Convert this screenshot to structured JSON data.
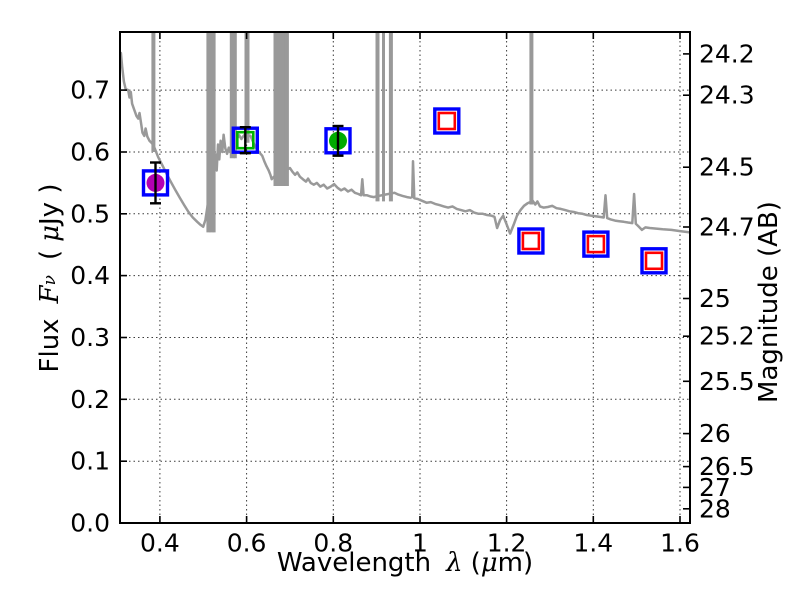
{
  "labels": {
    "xlabel_word": "Wavelength",
    "xlabel_symbol": "λ",
    "xlabel_units_open": "(",
    "xlabel_mu": "μ",
    "xlabel_units_rest": "m)",
    "ylabel_word": "Flux",
    "ylabel_F": "F",
    "ylabel_nu": "ν",
    "ylabel_units_open": "(",
    "ylabel_mu": "μ",
    "ylabel_units_rest": "Jy )",
    "ylabel_right": "Magnitude (AB)"
  },
  "chart_data": {
    "type": "line+scatter",
    "title": "",
    "xlabel": "Wavelength λ (μm)",
    "ylabel": "Flux Fν ( μJy )",
    "ylabel_right": "Magnitude (AB)",
    "xlim": [
      0.308,
      1.623
    ],
    "ylim": [
      0.0,
      0.794
    ],
    "grid": true,
    "x_ticks": {
      "values": [
        0.4,
        0.6,
        0.8,
        1.0,
        1.2,
        1.4,
        1.6
      ],
      "labels": [
        "0.4",
        "0.6",
        "0.8",
        "1",
        "1.2",
        "1.4",
        "1.6"
      ]
    },
    "y_ticks_left": {
      "values": [
        0.0,
        0.1,
        0.2,
        0.3,
        0.4,
        0.5,
        0.6,
        0.7
      ],
      "labels": [
        "0.0",
        "0.1",
        "0.2",
        "0.3",
        "0.4",
        "0.5",
        "0.6",
        "0.7"
      ]
    },
    "y_ticks_right": {
      "values": [
        24.2,
        24.3,
        24.5,
        24.7,
        25,
        25.2,
        25.5,
        26,
        26.5,
        27,
        28
      ],
      "labels": [
        "24.2",
        "24.3",
        "24.5",
        "24.7",
        "25",
        "25.2",
        "25.5",
        "26",
        "26.5",
        "27",
        "28"
      ],
      "relation": "AB magnitude axis: F(μJy) = 10^((23.9 − m_AB)/2.5)"
    },
    "series": [
      {
        "name": "model_spectrum",
        "type": "line",
        "color": "#999999",
        "points": [
          [
            0.31,
            0.76
          ],
          [
            0.313,
            0.737
          ],
          [
            0.317,
            0.714
          ],
          [
            0.321,
            0.702
          ],
          [
            0.327,
            0.7
          ],
          [
            0.33,
            0.688
          ],
          [
            0.333,
            0.697
          ],
          [
            0.336,
            0.678
          ],
          [
            0.341,
            0.668
          ],
          [
            0.346,
            0.658
          ],
          [
            0.35,
            0.654
          ],
          [
            0.353,
            0.663
          ],
          [
            0.357,
            0.645
          ],
          [
            0.36,
            0.631
          ],
          [
            0.364,
            0.626
          ],
          [
            0.367,
            0.638
          ],
          [
            0.371,
            0.625
          ],
          [
            0.376,
            0.618
          ],
          [
            0.382,
            0.614
          ],
          [
            0.388,
            0.606
          ],
          [
            0.396,
            0.592
          ],
          [
            0.406,
            0.578
          ],
          [
            0.416,
            0.564
          ],
          [
            0.426,
            0.551
          ],
          [
            0.436,
            0.538
          ],
          [
            0.446,
            0.526
          ],
          [
            0.456,
            0.514
          ],
          [
            0.466,
            0.503
          ],
          [
            0.476,
            0.494
          ],
          [
            0.486,
            0.487
          ],
          [
            0.494,
            0.482
          ],
          [
            0.5,
            0.479
          ],
          [
            0.505,
            0.49
          ],
          [
            0.528,
            0.596
          ],
          [
            0.531,
            0.57
          ],
          [
            0.534,
            0.612
          ],
          [
            0.537,
            0.588
          ],
          [
            0.54,
            0.618
          ],
          [
            0.544,
            0.6
          ],
          [
            0.547,
            0.628
          ],
          [
            0.551,
            0.606
          ],
          [
            0.555,
            0.597
          ],
          [
            0.559,
            0.607
          ],
          [
            0.562,
            0.6
          ],
          [
            0.578,
            0.622
          ],
          [
            0.583,
            0.627
          ],
          [
            0.588,
            0.621
          ],
          [
            0.593,
            0.626
          ],
          [
            0.596,
            0.628
          ],
          [
            0.609,
            0.626
          ],
          [
            0.614,
            0.618
          ],
          [
            0.619,
            0.61
          ],
          [
            0.625,
            0.603
          ],
          [
            0.631,
            0.598
          ],
          [
            0.636,
            0.594
          ],
          [
            0.641,
            0.585
          ],
          [
            0.646,
            0.577
          ],
          [
            0.651,
            0.57
          ],
          [
            0.655,
            0.563
          ],
          [
            0.658,
            0.556
          ],
          [
            0.663,
            0.56
          ],
          [
            0.7,
            0.574
          ],
          [
            0.706,
            0.568
          ],
          [
            0.712,
            0.563
          ],
          [
            0.717,
            0.567
          ],
          [
            0.723,
            0.56
          ],
          [
            0.73,
            0.556
          ],
          [
            0.737,
            0.552
          ],
          [
            0.742,
            0.557
          ],
          [
            0.748,
            0.55
          ],
          [
            0.755,
            0.547
          ],
          [
            0.762,
            0.55
          ],
          [
            0.77,
            0.544
          ],
          [
            0.778,
            0.547
          ],
          [
            0.786,
            0.541
          ],
          [
            0.794,
            0.544
          ],
          [
            0.802,
            0.548
          ],
          [
            0.81,
            0.542
          ],
          [
            0.818,
            0.538
          ],
          [
            0.826,
            0.541
          ],
          [
            0.834,
            0.536
          ],
          [
            0.842,
            0.539
          ],
          [
            0.85,
            0.534
          ],
          [
            0.858,
            0.532
          ],
          [
            0.864,
            0.53
          ],
          [
            0.867,
            0.556
          ],
          [
            0.87,
            0.53
          ],
          [
            0.878,
            0.53
          ],
          [
            0.886,
            0.528
          ],
          [
            0.894,
            0.527
          ],
          [
            0.898,
            0.528
          ],
          [
            0.941,
            0.534
          ],
          [
            0.95,
            0.531
          ],
          [
            0.96,
            0.529
          ],
          [
            0.97,
            0.527
          ],
          [
            0.978,
            0.526
          ],
          [
            0.982,
            0.527
          ],
          [
            0.984,
            0.585
          ],
          [
            0.987,
            0.525
          ],
          [
            0.995,
            0.524
          ],
          [
            1.005,
            0.521
          ],
          [
            1.015,
            0.518
          ],
          [
            1.025,
            0.519
          ],
          [
            1.035,
            0.516
          ],
          [
            1.045,
            0.514
          ],
          [
            1.055,
            0.512
          ],
          [
            1.065,
            0.51
          ],
          [
            1.075,
            0.512
          ],
          [
            1.085,
            0.508
          ],
          [
            1.095,
            0.506
          ],
          [
            1.105,
            0.504
          ],
          [
            1.115,
            0.506
          ],
          [
            1.125,
            0.502
          ],
          [
            1.135,
            0.5
          ],
          [
            1.145,
            0.5
          ],
          [
            1.155,
            0.498
          ],
          [
            1.165,
            0.497
          ],
          [
            1.172,
            0.495
          ],
          [
            1.178,
            0.477
          ],
          [
            1.185,
            0.49
          ],
          [
            1.192,
            0.497
          ],
          [
            1.2,
            0.483
          ],
          [
            1.208,
            0.468
          ],
          [
            1.216,
            0.482
          ],
          [
            1.224,
            0.497
          ],
          [
            1.232,
            0.506
          ],
          [
            1.24,
            0.513
          ],
          [
            1.248,
            0.517
          ],
          [
            1.254,
            0.519
          ],
          [
            1.26,
            0.521
          ],
          [
            1.266,
            0.515
          ],
          [
            1.271,
            0.52
          ],
          [
            1.277,
            0.512
          ],
          [
            1.285,
            0.51
          ],
          [
            1.295,
            0.511
          ],
          [
            1.305,
            0.513
          ],
          [
            1.315,
            0.509
          ],
          [
            1.325,
            0.508
          ],
          [
            1.335,
            0.506
          ],
          [
            1.345,
            0.504
          ],
          [
            1.355,
            0.503
          ],
          [
            1.365,
            0.501
          ],
          [
            1.375,
            0.5
          ],
          [
            1.385,
            0.498
          ],
          [
            1.395,
            0.497
          ],
          [
            1.405,
            0.496
          ],
          [
            1.415,
            0.495
          ],
          [
            1.424,
            0.494
          ],
          [
            1.428,
            0.53
          ],
          [
            1.432,
            0.493
          ],
          [
            1.44,
            0.491
          ],
          [
            1.45,
            0.489
          ],
          [
            1.46,
            0.488
          ],
          [
            1.47,
            0.487
          ],
          [
            1.48,
            0.486
          ],
          [
            1.49,
            0.485
          ],
          [
            1.494,
            0.532
          ],
          [
            1.498,
            0.484
          ],
          [
            1.505,
            0.479
          ],
          [
            1.512,
            0.474
          ],
          [
            1.52,
            0.478
          ],
          [
            1.53,
            0.477
          ],
          [
            1.545,
            0.476
          ],
          [
            1.56,
            0.475
          ],
          [
            1.58,
            0.474
          ],
          [
            1.6,
            0.472
          ],
          [
            1.623,
            0.47
          ]
        ]
      },
      {
        "name": "emission_line_spikes_clipped_at_top",
        "type": "vlines",
        "color": "#999999",
        "lines": [
          {
            "x": 0.385,
            "w": 4,
            "y0": 0.6
          },
          {
            "x": 0.512,
            "w": 4,
            "y0": 0.47
          },
          {
            "x": 0.519,
            "w": 4,
            "y0": 0.47
          },
          {
            "x": 0.525,
            "w": 3,
            "y0": 0.47
          },
          {
            "x": 0.567,
            "w": 5,
            "y0": 0.59
          },
          {
            "x": 0.574,
            "w": 3,
            "y0": 0.59
          },
          {
            "x": 0.601,
            "w": 5,
            "y0": 0.615
          },
          {
            "x": 0.668,
            "w": 5,
            "y0": 0.545
          },
          {
            "x": 0.676,
            "w": 4,
            "y0": 0.545
          },
          {
            "x": 0.686,
            "w": 5,
            "y0": 0.545
          },
          {
            "x": 0.693,
            "w": 4,
            "y0": 0.545
          },
          {
            "x": 0.902,
            "w": 4,
            "y0": 0.52
          },
          {
            "x": 0.916,
            "w": 3,
            "y0": 0.52
          },
          {
            "x": 0.933,
            "w": 4,
            "y0": 0.52
          },
          {
            "x": 1.257,
            "w": 4,
            "y0": 0.515
          }
        ]
      },
      {
        "name": "photometry",
        "type": "scatter",
        "outer_square_color": "#0000ff",
        "points": [
          {
            "lambda": 0.39,
            "flux": 0.55,
            "err": 0.033,
            "marker": "filled-circle",
            "marker_color": "#b300b3"
          },
          {
            "lambda": 0.597,
            "flux": 0.619,
            "err": 0.021,
            "marker": "open-square",
            "marker_color": "#00b400"
          },
          {
            "lambda": 0.811,
            "flux": 0.618,
            "err": 0.024,
            "marker": "filled-circle",
            "marker_color": "#00ab00"
          },
          {
            "lambda": 1.062,
            "flux": 0.65,
            "err": 0,
            "marker": "open-square",
            "marker_color": "#ff0000"
          },
          {
            "lambda": 1.256,
            "flux": 0.456,
            "err": 0,
            "marker": "open-square",
            "marker_color": "#ff0000"
          },
          {
            "lambda": 1.406,
            "flux": 0.451,
            "err": 0,
            "marker": "open-square",
            "marker_color": "#ff0000"
          },
          {
            "lambda": 1.54,
            "flux": 0.424,
            "err": 0,
            "marker": "open-square",
            "marker_color": "#ff0000"
          }
        ]
      }
    ]
  },
  "colors": {
    "spectrum": "#999999",
    "outer_square": "#0000ff",
    "axis": "#000000",
    "background": "#ffffff"
  }
}
